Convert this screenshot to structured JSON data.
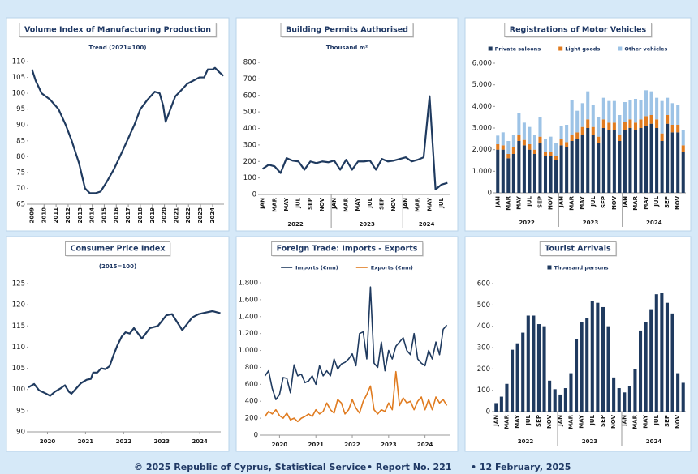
{
  "chart_data": [
    {
      "type": "line",
      "title": "Volume Index of Manufacturing Production",
      "subtitle": "Trend (2021=100)",
      "color": "#1f3a5f",
      "x": [
        2009.0,
        2009.3,
        2009.8,
        2010.5,
        2011.2,
        2011.8,
        2012.3,
        2012.9,
        2013.4,
        2013.8,
        2014.3,
        2014.7,
        2015.2,
        2015.8,
        2016.3,
        2016.9,
        2017.5,
        2018.0,
        2018.6,
        2019.2,
        2019.6,
        2019.9,
        2020.1,
        2020.5,
        2020.9,
        2021.4,
        2021.9,
        2022.4,
        2022.9,
        2023.3,
        2023.6,
        2024.0,
        2024.2,
        2024.6,
        2024.9
      ],
      "values": [
        107.5,
        104,
        100,
        98,
        95,
        90,
        85,
        78,
        70,
        68.5,
        68.5,
        69,
        72,
        76,
        80,
        85,
        90,
        95,
        98,
        100.5,
        100,
        96,
        91,
        95,
        99,
        101,
        103,
        104,
        105,
        105,
        107.5,
        107.5,
        108,
        106.5,
        105.5
      ],
      "xlim": [
        2008.7,
        2024.95
      ],
      "xticks": [
        2009,
        2010,
        2011,
        2012,
        2013,
        2014,
        2015,
        2016,
        2017,
        2018,
        2019,
        2020,
        2021,
        2022,
        2023,
        2024
      ],
      "ylim": [
        65,
        110
      ],
      "yticks": [
        65,
        70,
        75,
        80,
        85,
        90,
        95,
        100,
        105,
        110
      ]
    },
    {
      "type": "line",
      "title": "Building Permits Authorised",
      "subtitle": "Thousand m²",
      "color": "#1f3a5f",
      "categories": [
        "JAN",
        null,
        "MAR",
        null,
        "MAY",
        null,
        "JUL",
        null,
        "SEP",
        null,
        "NOV",
        null,
        "JAN",
        null,
        "MAR",
        null,
        "MAY",
        null,
        "JUL",
        null,
        "SEP",
        null,
        "NOV",
        null,
        "JAN",
        null,
        "MAR",
        null,
        "MAY",
        null,
        "JUL",
        null
      ],
      "group_labels": [
        "2022",
        "2023",
        "2024"
      ],
      "values": [
        155,
        180,
        170,
        130,
        220,
        205,
        200,
        150,
        200,
        190,
        200,
        195,
        205,
        150,
        210,
        150,
        200,
        200,
        205,
        150,
        215,
        200,
        205,
        215,
        225,
        200,
        210,
        225,
        595,
        30,
        60,
        70
      ],
      "ylim": [
        0,
        800
      ],
      "yticks": [
        0,
        100,
        200,
        300,
        400,
        500,
        600,
        700,
        800
      ]
    },
    {
      "type": "bar",
      "stacked": true,
      "title": "Registrations of Motor Vehicles",
      "legend": "top",
      "categories": [
        "JAN",
        null,
        "MAR",
        null,
        "MAY",
        null,
        "JUL",
        null,
        "SEP",
        null,
        "NOV",
        null,
        "JAN",
        null,
        "MAR",
        null,
        "MAY",
        null,
        "JUL",
        null,
        "SEP",
        null,
        "NOV",
        null,
        "JAN",
        null,
        "MAR",
        null,
        "MAY",
        null,
        "JUL",
        null,
        "SEP",
        null,
        "NOV",
        null
      ],
      "group_labels": [
        "2022",
        "2023",
        "2024"
      ],
      "series": [
        {
          "name": "Private saloons",
          "color": "#1f3a5f",
          "values": [
            2000,
            2000,
            1600,
            1800,
            2400,
            2200,
            2000,
            1800,
            2300,
            1700,
            1700,
            1500,
            2200,
            2100,
            2400,
            2500,
            2700,
            3000,
            2700,
            2300,
            3000,
            2900,
            2900,
            2400,
            2900,
            3000,
            2900,
            3000,
            3100,
            3200,
            3000,
            2400,
            3200,
            2800,
            2800,
            1900
          ]
        },
        {
          "name": "Light goods",
          "color": "#e07b1f",
          "values": [
            250,
            200,
            200,
            300,
            300,
            250,
            250,
            200,
            300,
            200,
            200,
            200,
            300,
            250,
            300,
            300,
            350,
            400,
            350,
            300,
            400,
            350,
            350,
            300,
            400,
            400,
            350,
            400,
            450,
            400,
            400,
            350,
            400,
            350,
            350,
            300
          ]
        },
        {
          "name": "Other vehicles",
          "color": "#9dc3e6",
          "values": [
            400,
            600,
            600,
            600,
            1000,
            800,
            800,
            700,
            900,
            600,
            700,
            600,
            600,
            800,
            1600,
            1000,
            1100,
            1300,
            1000,
            900,
            1000,
            1000,
            1000,
            900,
            900,
            900,
            1100,
            900,
            1200,
            1100,
            1000,
            1500,
            800,
            1000,
            900,
            700
          ]
        }
      ],
      "ylim": [
        0,
        6000
      ],
      "yticks": [
        0,
        {
          "value": 1000,
          "label": "1.000"
        },
        {
          "value": 2000,
          "label": "2.000"
        },
        {
          "value": 3000,
          "label": "3.000"
        },
        {
          "value": 4000,
          "label": "4.000"
        },
        {
          "value": 5000,
          "label": "5.000"
        },
        {
          "value": 6000,
          "label": "6.000"
        }
      ]
    },
    {
      "type": "line",
      "title": "Consumer Price Index",
      "subtitle": "(2015=100)",
      "color": "#1f3a5f",
      "x": [
        2019.5,
        2019.65,
        2019.78,
        2019.97,
        2020.07,
        2020.2,
        2020.35,
        2020.46,
        2020.56,
        2020.63,
        2020.78,
        2020.88,
        2021.03,
        2021.14,
        2021.2,
        2021.31,
        2021.41,
        2021.52,
        2021.63,
        2021.73,
        2021.84,
        2021.95,
        2022.05,
        2022.16,
        2022.27,
        2022.48,
        2022.69,
        2022.9,
        2023.12,
        2023.27,
        2023.54,
        2023.8,
        2023.97,
        2024.33,
        2024.54
      ],
      "values": [
        100.5,
        101.3,
        99.8,
        99,
        98.5,
        99.5,
        100.3,
        101,
        99.5,
        99,
        100.5,
        101.5,
        102.3,
        102.5,
        104,
        104,
        105,
        104.8,
        105.5,
        108,
        110.5,
        112.5,
        113.5,
        113.2,
        114.5,
        112,
        114.5,
        115,
        117.5,
        117.8,
        114,
        117,
        117.8,
        118.5,
        118
      ],
      "xlim": [
        2019.5,
        2024.55
      ],
      "xticks": [
        2020,
        2021,
        2022,
        2023,
        2024
      ],
      "ylim": [
        90,
        125
      ],
      "yticks": [
        90,
        95,
        100,
        105,
        110,
        115,
        120,
        125
      ]
    },
    {
      "type": "line",
      "title": "Foreign Trade: Imports - Exports",
      "legend": "top",
      "x": [
        2019.6,
        2019.7,
        2019.8,
        2019.9,
        2020.0,
        2020.1,
        2020.2,
        2020.3,
        2020.4,
        2020.5,
        2020.6,
        2020.7,
        2020.8,
        2020.9,
        2021.0,
        2021.1,
        2021.2,
        2021.3,
        2021.4,
        2021.5,
        2021.6,
        2021.7,
        2021.8,
        2021.9,
        2022.0,
        2022.1,
        2022.2,
        2022.3,
        2022.4,
        2022.5,
        2022.6,
        2022.7,
        2022.8,
        2022.9,
        2023.0,
        2023.1,
        2023.2,
        2023.3,
        2023.4,
        2023.5,
        2023.6,
        2023.7,
        2023.8,
        2023.9,
        2024.0,
        2024.1,
        2024.2,
        2024.3,
        2024.4,
        2024.5,
        2024.6
      ],
      "series": [
        {
          "name": "Imports (€mn)",
          "color": "#1f3a5f",
          "values": [
            700,
            760,
            550,
            420,
            480,
            680,
            670,
            500,
            830,
            700,
            720,
            620,
            640,
            700,
            600,
            820,
            700,
            760,
            700,
            900,
            780,
            840,
            860,
            900,
            960,
            820,
            1200,
            1220,
            900,
            1750,
            850,
            800,
            1100,
            760,
            1000,
            900,
            1050,
            1100,
            1150,
            1000,
            950,
            1200,
            900,
            850,
            820,
            1000,
            900,
            1100,
            950,
            1250,
            1300
          ]
        },
        {
          "name": "Exports (€mn)",
          "color": "#e07b1f",
          "values": [
            220,
            280,
            250,
            300,
            230,
            200,
            260,
            180,
            200,
            160,
            200,
            220,
            250,
            220,
            300,
            250,
            280,
            380,
            300,
            260,
            420,
            380,
            250,
            300,
            420,
            320,
            260,
            400,
            480,
            580,
            300,
            250,
            300,
            280,
            380,
            300,
            750,
            350,
            440,
            380,
            400,
            300,
            400,
            450,
            300,
            420,
            300,
            450,
            380,
            420,
            350
          ]
        }
      ],
      "xlim": [
        2019.5,
        2024.7
      ],
      "xticks": [
        2020,
        2021,
        2022,
        2023,
        2024
      ],
      "ylim": [
        0,
        1800
      ],
      "yticks": [
        0,
        200,
        400,
        600,
        800,
        {
          "value": 1000,
          "label": "1.000"
        },
        {
          "value": 1200,
          "label": "1.200"
        },
        {
          "value": 1400,
          "label": "1.400"
        },
        {
          "value": 1600,
          "label": "1.600"
        },
        {
          "value": 1800,
          "label": "1.800"
        }
      ]
    },
    {
      "type": "bar",
      "title": "Tourist Arrivals",
      "legend": "top",
      "categories": [
        "JAN",
        null,
        "MAR",
        null,
        "MAY",
        null,
        "JUL",
        null,
        "SEP",
        null,
        "NOV",
        null,
        "JAN",
        null,
        "MAR",
        null,
        "MAY",
        null,
        "JUL",
        null,
        "SEP",
        null,
        "NOV",
        null,
        "JAN",
        null,
        "MAR",
        null,
        "MAY",
        null,
        "JUL",
        null,
        "SEP",
        null,
        "NOV",
        null
      ],
      "group_labels": [
        "2022",
        "2023",
        "2024"
      ],
      "series": [
        {
          "name": "Thousand persons",
          "color": "#1f3a5f",
          "values": [
            40,
            70,
            130,
            290,
            320,
            370,
            450,
            450,
            410,
            400,
            145,
            105,
            80,
            110,
            180,
            340,
            420,
            440,
            520,
            510,
            490,
            400,
            160,
            110,
            90,
            120,
            200,
            380,
            420,
            480,
            550,
            555,
            510,
            460,
            180,
            135
          ]
        }
      ],
      "ylim": [
        0,
        600
      ],
      "yticks": [
        0,
        100,
        200,
        300,
        400,
        500,
        600
      ]
    }
  ],
  "footer": {
    "copyright": "© 2025 Republic of Cyprus, Statistical Service",
    "report": "• Report No. 221",
    "date": "• 12 February, 2025"
  }
}
